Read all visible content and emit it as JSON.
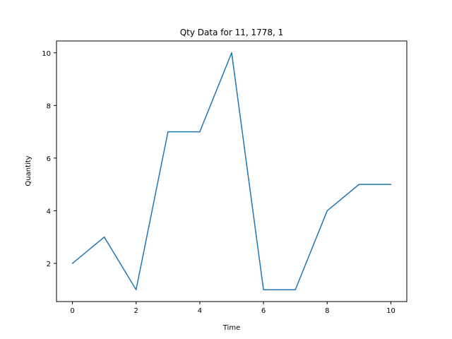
{
  "chart_data": {
    "type": "line",
    "title": "Qty Data for 11, 1778, 1",
    "xlabel": "Time",
    "ylabel": "Quantity",
    "x": [
      0,
      1,
      2,
      3,
      4,
      5,
      6,
      7,
      8,
      9,
      10
    ],
    "series": [
      {
        "values": [
          2,
          3,
          1,
          7,
          7,
          10,
          1,
          1,
          4,
          5,
          5
        ],
        "color": "#1f77b4"
      }
    ],
    "xlim": [
      -0.5,
      10.5
    ],
    "ylim": [
      0.55,
      10.45
    ],
    "xticks": [
      0,
      2,
      4,
      6,
      8,
      10
    ],
    "yticks": [
      2,
      4,
      6,
      8,
      10
    ],
    "grid": false,
    "legend": "none"
  }
}
